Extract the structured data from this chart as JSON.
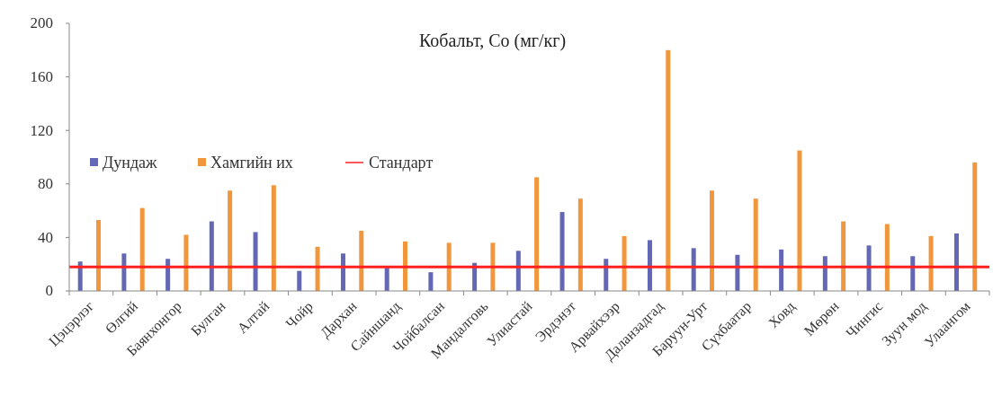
{
  "chart_data": {
    "type": "bar",
    "title": "Кобальт, Co (мг/кг)",
    "categories": [
      "Цэцэрлэг",
      "Өлгий",
      "Баянхонгор",
      "Булган",
      "Алтай",
      "Чойр",
      "Дархан",
      "Сайншанд",
      "Чойбалсан",
      "Мандалговь",
      "Улиастай",
      "Эрдэнэт",
      "Арвайхээр",
      "Даланзадгад",
      "Баруун-Урт",
      "Сүхбаатар",
      "Ховд",
      "Мөрөн",
      "Чингис",
      "Зуун мод",
      "Улаангом"
    ],
    "series": [
      {
        "name": "Дундаж",
        "color": "#6468b4",
        "values": [
          22,
          28,
          24,
          52,
          44,
          15,
          28,
          18,
          14,
          21,
          30,
          59,
          24,
          38,
          32,
          27,
          31,
          26,
          34,
          26,
          43
        ]
      },
      {
        "name": "Хамгийн их",
        "color": "#f0963c",
        "values": [
          53,
          62,
          42,
          75,
          79,
          33,
          45,
          37,
          36,
          36,
          85,
          69,
          41,
          180,
          75,
          69,
          105,
          52,
          50,
          41,
          96
        ]
      }
    ],
    "ref_lines": [
      {
        "axis": "y",
        "value": 18,
        "label": "Стандарт",
        "color": "#ff2020"
      }
    ],
    "ylim": [
      0,
      200
    ],
    "yticks": [
      0,
      40,
      80,
      120,
      160,
      200
    ],
    "legend": "left"
  }
}
